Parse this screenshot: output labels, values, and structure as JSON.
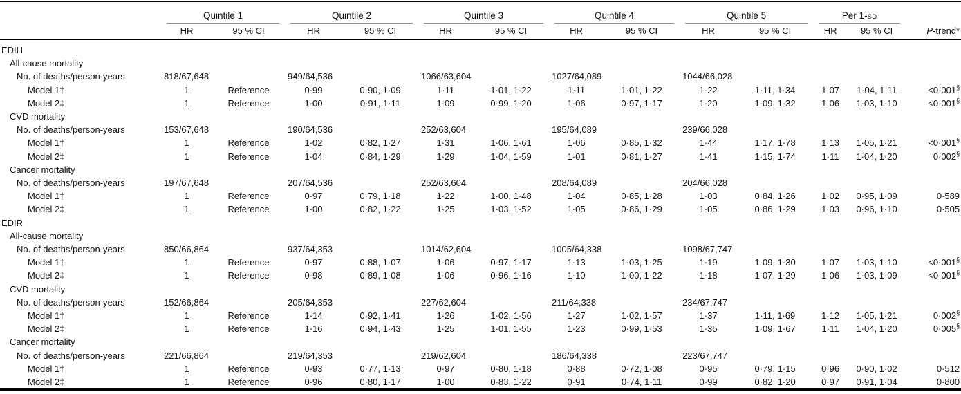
{
  "colors": {
    "rule": "#000000",
    "group_underline": "#8c8c8c",
    "text": "#141414",
    "background": "#ffffff"
  },
  "header": {
    "quintiles": [
      "Quintile 1",
      "Quintile 2",
      "Quintile 3",
      "Quintile 4",
      "Quintile 5"
    ],
    "per_sd_prefix": "Per 1-",
    "per_sd_smallcaps": "SD",
    "hr": "HR",
    "ci": "95 % CI",
    "ptrend": "P-trend*"
  },
  "sections": [
    {
      "title": "EDIH",
      "outcomes": [
        {
          "title": "All-cause mortality",
          "deaths_label": "No. of deaths/person-years",
          "deaths": [
            "818/67,648",
            "949/64,536",
            "1066/63,604",
            "1027/64,089",
            "1044/66,028"
          ],
          "models": [
            {
              "label": "Model 1†",
              "cells": [
                "1",
                "Reference",
                "0·99",
                "0·90, 1·09",
                "1·11",
                "1·01, 1·22",
                "1·11",
                "1·01, 1·22",
                "1·22",
                "1·11, 1·34",
                "1·07",
                "1·04, 1·11"
              ],
              "p": "<0·001",
              "p_sup": "§"
            },
            {
              "label": "Model 2‡",
              "cells": [
                "1",
                "Reference",
                "1·00",
                "0·91, 1·11",
                "1·09",
                "0·99, 1·20",
                "1·06",
                "0·97, 1·17",
                "1·20",
                "1·09, 1·32",
                "1·06",
                "1·03, 1·10"
              ],
              "p": "<0·001",
              "p_sup": "§"
            }
          ]
        },
        {
          "title": "CVD mortality",
          "deaths_label": "No. of deaths/person-years",
          "deaths": [
            "153/67,648",
            "190/64,536",
            "252/63,604",
            "195/64,089",
            "239/66,028"
          ],
          "models": [
            {
              "label": "Model 1†",
              "cells": [
                "1",
                "Reference",
                "1·02",
                "0·82, 1·27",
                "1·31",
                "1·06, 1·61",
                "1·06",
                "0·85, 1·32",
                "1·44",
                "1·17, 1·78",
                "1·13",
                "1·05, 1·21"
              ],
              "p": "<0·001",
              "p_sup": "§"
            },
            {
              "label": "Model 2‡",
              "cells": [
                "1",
                "Reference",
                "1·04",
                "0·84, 1·29",
                "1·29",
                "1·04, 1·59",
                "1·01",
                "0·81, 1·27",
                "1·41",
                "1·15, 1·74",
                "1·11",
                "1·04, 1·20"
              ],
              "p": "0·002",
              "p_sup": "§"
            }
          ]
        },
        {
          "title": "Cancer mortality",
          "deaths_label": "No. of deaths/person-years",
          "deaths": [
            "197/67,648",
            "207/64,536",
            "252/63,604",
            "208/64,089",
            "204/66,028"
          ],
          "models": [
            {
              "label": "Model 1†",
              "cells": [
                "1",
                "Reference",
                "0·97",
                "0·79, 1·18",
                "1·22",
                "1·00, 1·48",
                "1·04",
                "0·85, 1·28",
                "1·03",
                "0·84, 1·26",
                "1·02",
                "0·95, 1·09"
              ],
              "p": "0·589",
              "p_sup": ""
            },
            {
              "label": "Model 2‡",
              "cells": [
                "1",
                "Reference",
                "1·00",
                "0·82, 1·22",
                "1·25",
                "1·03, 1·52",
                "1·05",
                "0·86, 1·29",
                "1·05",
                "0·86, 1·29",
                "1·03",
                "0·96, 1·10"
              ],
              "p": "0·505",
              "p_sup": ""
            }
          ]
        }
      ]
    },
    {
      "title": "EDIR",
      "outcomes": [
        {
          "title": "All-cause mortality",
          "deaths_label": "No. of deaths/person-years",
          "deaths": [
            "850/66,864",
            "937/64,353",
            "1014/62,604",
            "1005/64,338",
            "1098/67,747"
          ],
          "models": [
            {
              "label": "Model 1†",
              "cells": [
                "1",
                "Reference",
                "0·97",
                "0·88, 1·07",
                "1·06",
                "0·97, 1·17",
                "1·13",
                "1·03, 1·25",
                "1·19",
                "1·09, 1·30",
                "1·07",
                "1·03, 1·10"
              ],
              "p": "<0·001",
              "p_sup": "§"
            },
            {
              "label": "Model 2‡",
              "cells": [
                "1",
                "Reference",
                "0·98",
                "0·89, 1·08",
                "1·06",
                "0·96, 1·16",
                "1·10",
                "1·00, 1·22",
                "1·18",
                "1·07, 1·29",
                "1·06",
                "1·03, 1·09"
              ],
              "p": "<0·001",
              "p_sup": "§"
            }
          ]
        },
        {
          "title": "CVD mortality",
          "deaths_label": "No. of deaths/person-years",
          "deaths": [
            "152/66,864",
            "205/64,353",
            "227/62,604",
            "211/64,338",
            "234/67,747"
          ],
          "models": [
            {
              "label": "Model 1†",
              "cells": [
                "1",
                "Reference",
                "1·14",
                "0·92, 1·41",
                "1·26",
                "1·02, 1·56",
                "1·27",
                "1·02, 1·57",
                "1·37",
                "1·11, 1·69",
                "1·12",
                "1·05, 1·21"
              ],
              "p": "0·002",
              "p_sup": "§"
            },
            {
              "label": "Model 2‡",
              "cells": [
                "1",
                "Reference",
                "1·16",
                "0·94, 1·43",
                "1·25",
                "1·01, 1·55",
                "1·23",
                "0·99, 1·53",
                "1·35",
                "1·09, 1·67",
                "1·11",
                "1·04, 1·20"
              ],
              "p": "0·005",
              "p_sup": "§"
            }
          ]
        },
        {
          "title": "Cancer mortality",
          "deaths_label": "No. of deaths/person-years",
          "deaths": [
            "221/66,864",
            "219/64,353",
            "219/62,604",
            "186/64,338",
            "223/67,747"
          ],
          "models": [
            {
              "label": "Model 1†",
              "cells": [
                "1",
                "Reference",
                "0·93",
                "0·77, 1·13",
                "0·97",
                "0·80, 1·18",
                "0·88",
                "0·72, 1·08",
                "0·95",
                "0·79, 1·15",
                "0·96",
                "0·90, 1·02"
              ],
              "p": "0·512",
              "p_sup": ""
            },
            {
              "label": "Model 2‡",
              "cells": [
                "1",
                "Reference",
                "0·96",
                "0·80, 1·17",
                "1·00",
                "0·83, 1·22",
                "0·91",
                "0·74, 1·11",
                "0·99",
                "0·82, 1·20",
                "0·97",
                "0·91, 1·04"
              ],
              "p": "0·800",
              "p_sup": ""
            }
          ]
        }
      ]
    }
  ]
}
